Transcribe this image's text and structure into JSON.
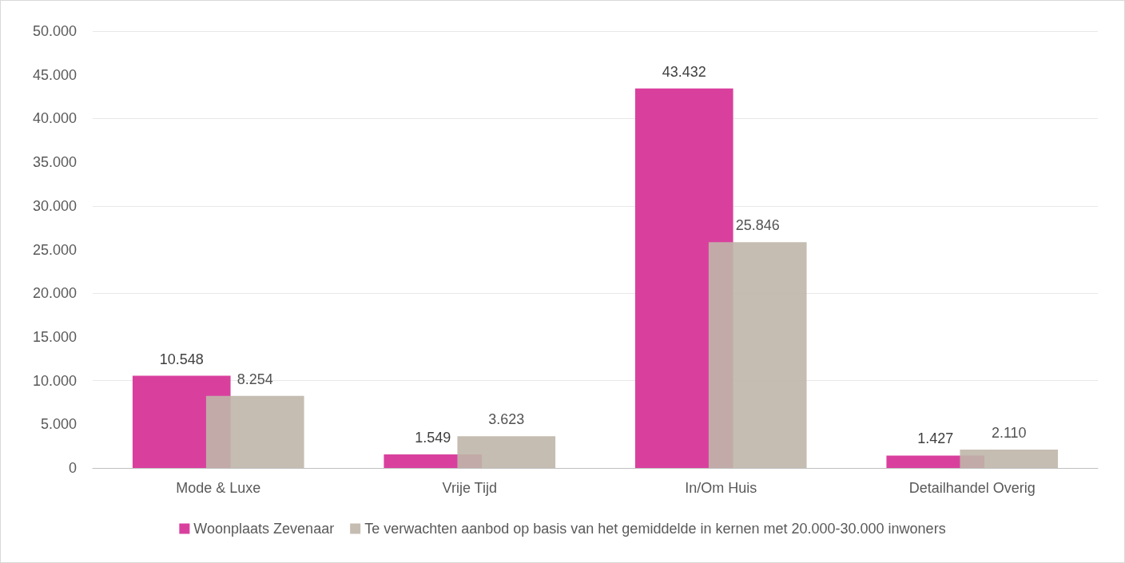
{
  "chart_data": {
    "type": "bar",
    "categories": [
      "Mode & Luxe",
      "Vrije Tijd",
      "In/Om Huis",
      "Detailhandel Overig"
    ],
    "series": [
      {
        "name": "Woonplaats Zevenaar",
        "color": "#d9409e",
        "values": [
          10548,
          1549,
          43432,
          1427
        ],
        "value_labels": [
          "10.548",
          "1.549",
          "43.432",
          "1.427"
        ]
      },
      {
        "name": "Te verwachten aanbod op basis van het gemiddelde in kernen met 20.000-30.000 inwoners",
        "color": "#bfb6a9",
        "values": [
          8254,
          3623,
          25846,
          2110
        ],
        "value_labels": [
          "8.254",
          "3.623",
          "25.846",
          "2.110"
        ]
      }
    ],
    "ylim": [
      0,
      50000
    ],
    "yticks": [
      {
        "value": 0,
        "label": "0"
      },
      {
        "value": 5000,
        "label": "5.000"
      },
      {
        "value": 10000,
        "label": "10.000"
      },
      {
        "value": 15000,
        "label": "15.000"
      },
      {
        "value": 20000,
        "label": "20.000"
      },
      {
        "value": 25000,
        "label": "25.000"
      },
      {
        "value": 30000,
        "label": "30.000"
      },
      {
        "value": 35000,
        "label": "35.000"
      },
      {
        "value": 40000,
        "label": "40.000"
      },
      {
        "value": 45000,
        "label": "45.000"
      },
      {
        "value": 50000,
        "label": "50.000"
      }
    ],
    "grid": "y",
    "legend": "bottom"
  }
}
